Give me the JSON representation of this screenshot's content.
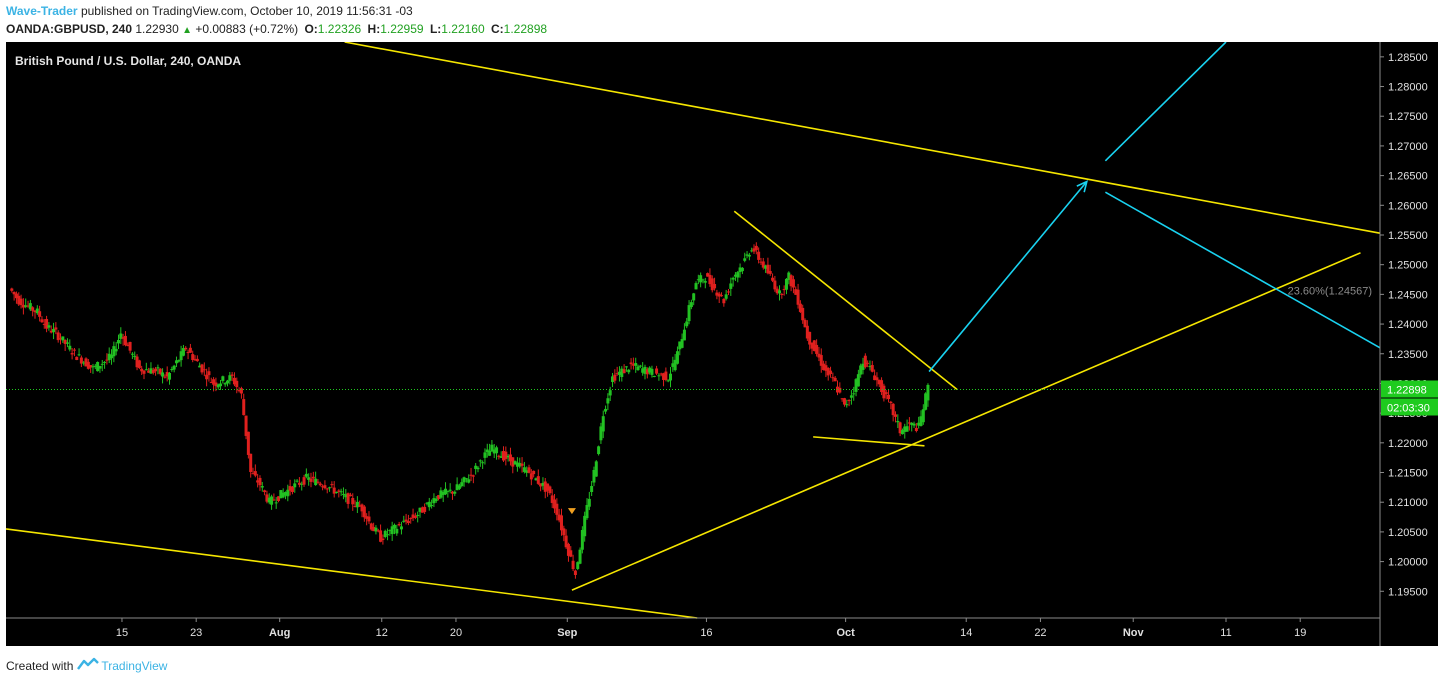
{
  "header": {
    "author": "Wave-Trader",
    "published_text": "published on TradingView.com, October 10, 2019 11:56:31 -03",
    "symbol": "OANDA:GBPUSD, 240",
    "last": "1.22930",
    "change": "+0.00883 (+0.72%)",
    "open_label": "O:",
    "open": "1.22326",
    "high_label": "H:",
    "high": "1.22959",
    "low_label": "L:",
    "low": "1.22160",
    "close_label": "C:",
    "close": "1.22898"
  },
  "footer": {
    "created_with": "Created with",
    "brand": "TradingView"
  },
  "colors": {
    "background": "#000000",
    "up_candle": "#22c122",
    "down_candle": "#e0201e",
    "trendline": "#f5e600",
    "projection": "#19d2f0",
    "price_tag": "#1ecb1e"
  },
  "chart_data": {
    "type": "candlestick",
    "title": "British Pound / U.S. Dollar, 240, OANDA",
    "y_ticks": [
      "1.28500",
      "1.28000",
      "1.27500",
      "1.27000",
      "1.26500",
      "1.26000",
      "1.25500",
      "1.25000",
      "1.24500",
      "1.24000",
      "1.23500",
      "1.23000",
      "1.22500",
      "1.22000",
      "1.21500",
      "1.21000",
      "1.20500",
      "1.20000",
      "1.19500"
    ],
    "ylim": [
      1.1905,
      1.2875
    ],
    "x_ticks": [
      {
        "label": "15",
        "x": 15
      },
      {
        "label": "23",
        "x": 23
      },
      {
        "label": "Aug",
        "x": 32
      },
      {
        "label": "12",
        "x": 43
      },
      {
        "label": "20",
        "x": 51
      },
      {
        "label": "Sep",
        "x": 63
      },
      {
        "label": "16",
        "x": 78
      },
      {
        "label": "Oct",
        "x": 93
      },
      {
        "label": "14",
        "x": 106
      },
      {
        "label": "22",
        "x": 114
      },
      {
        "label": "Nov",
        "x": 124
      },
      {
        "label": "11",
        "x": 134
      },
      {
        "label": "19",
        "x": 142
      }
    ],
    "xlim": [
      2.5,
      150.6
    ],
    "x_unit": "trading day",
    "price_path": [
      [
        3,
        1.246
      ],
      [
        4,
        1.244
      ],
      [
        6,
        1.242
      ],
      [
        7,
        1.2395
      ],
      [
        8,
        1.2385
      ],
      [
        10,
        1.235
      ],
      [
        12,
        1.2325
      ],
      [
        14,
        1.2345
      ],
      [
        15,
        1.2385
      ],
      [
        17,
        1.2325
      ],
      [
        19,
        1.232
      ],
      [
        20,
        1.231
      ],
      [
        22,
        1.236
      ],
      [
        24,
        1.232
      ],
      [
        25,
        1.23
      ],
      [
        27,
        1.231
      ],
      [
        28,
        1.228
      ],
      [
        29,
        1.215
      ],
      [
        30,
        1.213
      ],
      [
        31,
        1.21
      ],
      [
        33,
        1.212
      ],
      [
        35,
        1.214
      ],
      [
        37,
        1.213
      ],
      [
        39,
        1.211
      ],
      [
        41,
        1.209
      ],
      [
        42,
        1.206
      ],
      [
        43,
        1.204
      ],
      [
        45,
        1.206
      ],
      [
        47,
        1.208
      ],
      [
        49,
        1.211
      ],
      [
        51,
        1.212
      ],
      [
        53,
        1.215
      ],
      [
        54,
        1.2175
      ],
      [
        55,
        1.219
      ],
      [
        57,
        1.217
      ],
      [
        59,
        1.215
      ],
      [
        61,
        1.212
      ],
      [
        62,
        1.2085
      ],
      [
        63,
        1.203
      ],
      [
        64,
        1.198
      ],
      [
        65,
        1.207
      ],
      [
        66,
        1.215
      ],
      [
        67,
        1.225
      ],
      [
        68,
        1.231
      ],
      [
        70,
        1.233
      ],
      [
        72,
        1.232
      ],
      [
        74,
        1.231
      ],
      [
        75,
        1.235
      ],
      [
        76,
        1.241
      ],
      [
        77,
        1.247
      ],
      [
        78,
        1.248
      ],
      [
        80,
        1.244
      ],
      [
        81,
        1.248
      ],
      [
        82,
        1.25
      ],
      [
        83,
        1.253
      ],
      [
        85,
        1.248
      ],
      [
        86,
        1.245
      ],
      [
        87,
        1.248
      ],
      [
        88,
        1.244
      ],
      [
        89,
        1.238
      ],
      [
        90,
        1.235
      ],
      [
        91,
        1.232
      ],
      [
        92,
        1.23
      ],
      [
        93,
        1.226
      ],
      [
        94,
        1.229
      ],
      [
        95,
        1.234
      ],
      [
        96,
        1.232
      ],
      [
        97,
        1.229
      ],
      [
        98,
        1.226
      ],
      [
        99,
        1.222
      ],
      [
        100,
        1.223
      ],
      [
        101,
        1.2226
      ],
      [
        102,
        1.2293
      ]
    ],
    "series_note": "",
    "current_price": {
      "value": 1.22898,
      "label": "1.22898",
      "countdown": "02:03:30"
    },
    "fib_label": {
      "text": "23.60%(1.24567)",
      "price": 1.24567
    },
    "annotations": {
      "trendlines": [
        {
          "x1": 39,
          "y1": 1.2875,
          "x2": 150.6,
          "y2": 1.2553
        },
        {
          "x1": 2.5,
          "y1": 1.2055,
          "x2": 77,
          "y2": 1.1905
        },
        {
          "x1": 63.5,
          "y1": 1.1952,
          "x2": 148.5,
          "y2": 1.252
        },
        {
          "x1": 81,
          "y1": 1.259,
          "x2": 105,
          "y2": 1.229
        },
        {
          "x1": 89.5,
          "y1": 1.221,
          "x2": 101.5,
          "y2": 1.2195
        }
      ],
      "projections": [
        {
          "x1": 102,
          "y1": 1.232,
          "x2": 119,
          "y2": 1.264,
          "arrow": true
        },
        {
          "x1": 121,
          "y1": 1.2675,
          "x2": 134,
          "y2": 1.2875,
          "arrow": false
        },
        {
          "x1": 121,
          "y1": 1.2622,
          "x2": 150.6,
          "y2": 1.236,
          "arrow": false
        }
      ],
      "marker": {
        "x": 63.5,
        "y": 1.2085
      }
    }
  }
}
